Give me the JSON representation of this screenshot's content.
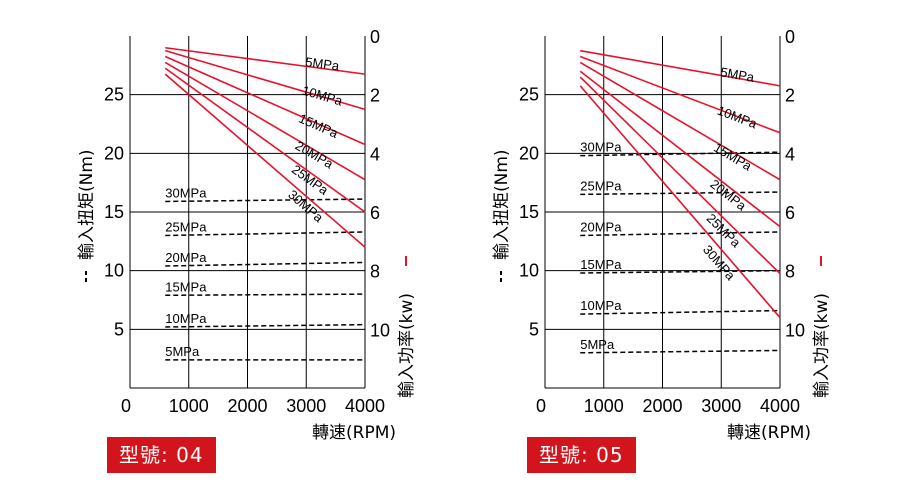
{
  "colors": {
    "power": "#e8112d",
    "torque": "#000000",
    "grid": "#000000",
    "badge_bg": "#d2151d",
    "badge_text": "#ffffff"
  },
  "chart_data": [
    {
      "type": "line",
      "model_label": "型號: 04",
      "xlabel": "轉速(RPM)",
      "ylabel_left": "輸入扭矩(Nm)",
      "ylabel_right": "輸入功率(kw)",
      "xlim": [
        0,
        4000
      ],
      "ylim_left": [
        0,
        30
      ],
      "ylim_right": [
        0,
        12
      ],
      "right_axis_inverted": true,
      "x_ticks": [
        "0",
        "1000",
        "2000",
        "3000",
        "4000"
      ],
      "y_left_ticks": [
        "5",
        "10",
        "15",
        "20",
        "25"
      ],
      "y_right_ticks": [
        "0",
        "2",
        "4",
        "6",
        "8",
        "10"
      ],
      "grid": true,
      "torque_series": [
        {
          "name": "5MPa",
          "x": [
            600,
            4000
          ],
          "values": [
            2.4,
            2.4
          ]
        },
        {
          "name": "10MPa",
          "x": [
            600,
            4000
          ],
          "values": [
            5.2,
            5.4
          ]
        },
        {
          "name": "15MPa",
          "x": [
            600,
            4000
          ],
          "values": [
            7.9,
            8.0
          ]
        },
        {
          "name": "20MPa",
          "x": [
            600,
            4000
          ],
          "values": [
            10.4,
            10.7
          ]
        },
        {
          "name": "25MPa",
          "x": [
            600,
            4000
          ],
          "values": [
            13.0,
            13.3
          ]
        },
        {
          "name": "30MPa",
          "x": [
            600,
            4000
          ],
          "values": [
            15.9,
            16.1
          ]
        }
      ],
      "power_series": [
        {
          "name": "5MPa",
          "x": [
            600,
            4000
          ],
          "values": [
            0.4,
            1.3
          ]
        },
        {
          "name": "10MPa",
          "x": [
            600,
            4000
          ],
          "values": [
            0.5,
            2.5
          ]
        },
        {
          "name": "15MPa",
          "x": [
            600,
            4000
          ],
          "values": [
            0.7,
            3.7
          ]
        },
        {
          "name": "20MPa",
          "x": [
            600,
            4000
          ],
          "values": [
            0.9,
            4.9
          ]
        },
        {
          "name": "25MPa",
          "x": [
            600,
            4000
          ],
          "values": [
            1.1,
            6.0
          ]
        },
        {
          "name": "30MPa",
          "x": [
            600,
            4000
          ],
          "values": [
            1.3,
            7.2
          ]
        }
      ]
    },
    {
      "type": "line",
      "model_label": "型號: 05",
      "xlabel": "轉速(RPM)",
      "ylabel_left": "輸入扭矩(Nm)",
      "ylabel_right": "輸入功率(kw)",
      "xlim": [
        0,
        4000
      ],
      "ylim_left": [
        0,
        30
      ],
      "ylim_right": [
        0,
        12
      ],
      "right_axis_inverted": true,
      "x_ticks": [
        "0",
        "1000",
        "2000",
        "3000",
        "4000"
      ],
      "y_left_ticks": [
        "5",
        "10",
        "15",
        "20",
        "25"
      ],
      "y_right_ticks": [
        "0",
        "2",
        "4",
        "6",
        "8",
        "10"
      ],
      "grid": true,
      "torque_series": [
        {
          "name": "5MPa",
          "x": [
            600,
            4000
          ],
          "values": [
            3.0,
            3.2
          ]
        },
        {
          "name": "10MPa",
          "x": [
            600,
            4000
          ],
          "values": [
            6.3,
            6.6
          ]
        },
        {
          "name": "15MPa",
          "x": [
            600,
            4000
          ],
          "values": [
            9.8,
            10.0
          ]
        },
        {
          "name": "20MPa",
          "x": [
            600,
            4000
          ],
          "values": [
            13.0,
            13.3
          ]
        },
        {
          "name": "25MPa",
          "x": [
            600,
            4000
          ],
          "values": [
            16.5,
            16.7
          ]
        },
        {
          "name": "30MPa",
          "x": [
            600,
            4000
          ],
          "values": [
            19.8,
            20.1
          ]
        }
      ],
      "power_series": [
        {
          "name": "5MPa",
          "x": [
            600,
            4000
          ],
          "values": [
            0.5,
            1.7
          ]
        },
        {
          "name": "10MPa",
          "x": [
            600,
            4000
          ],
          "values": [
            0.7,
            3.3
          ]
        },
        {
          "name": "15MPa",
          "x": [
            600,
            4000
          ],
          "values": [
            0.9,
            4.9
          ]
        },
        {
          "name": "20MPa",
          "x": [
            600,
            4000
          ],
          "values": [
            1.2,
            6.5
          ]
        },
        {
          "name": "25MPa",
          "x": [
            600,
            4000
          ],
          "values": [
            1.4,
            8.1
          ]
        },
        {
          "name": "30MPa",
          "x": [
            600,
            4000
          ],
          "values": [
            1.7,
            9.6
          ]
        }
      ]
    }
  ]
}
